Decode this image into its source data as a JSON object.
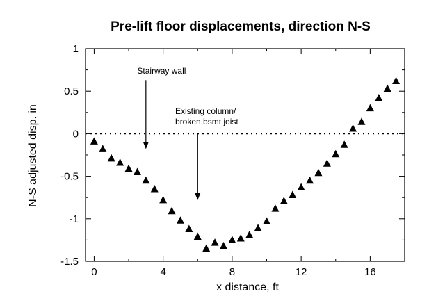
{
  "chart_data": {
    "type": "scatter",
    "title": "Pre-lift floor displacements, direction N-S",
    "xlabel": "x distance, ft",
    "ylabel": "N-S adjusted disp. in",
    "xlim": [
      -0.5,
      18
    ],
    "ylim": [
      -1.5,
      1
    ],
    "xticks": [
      0,
      4,
      8,
      12,
      16
    ],
    "xtick_labels": [
      "0",
      "4",
      "8",
      "12",
      "16"
    ],
    "yticks": [
      1,
      0.5,
      0,
      -0.5,
      -1,
      -1.5
    ],
    "ytick_labels": [
      "1",
      "0.5",
      "0",
      "-0.5",
      "-1",
      "-1.5"
    ],
    "reference_line": {
      "y": 0,
      "style": "dotted"
    },
    "marker": "filled-triangle",
    "points": [
      {
        "x": 0.0,
        "y": -0.09
      },
      {
        "x": 0.5,
        "y": -0.18
      },
      {
        "x": 1.0,
        "y": -0.29
      },
      {
        "x": 1.5,
        "y": -0.34
      },
      {
        "x": 2.0,
        "y": -0.41
      },
      {
        "x": 2.5,
        "y": -0.45
      },
      {
        "x": 3.0,
        "y": -0.55
      },
      {
        "x": 3.5,
        "y": -0.65
      },
      {
        "x": 4.0,
        "y": -0.78
      },
      {
        "x": 4.5,
        "y": -0.91
      },
      {
        "x": 5.0,
        "y": -1.02
      },
      {
        "x": 5.5,
        "y": -1.12
      },
      {
        "x": 6.0,
        "y": -1.21
      },
      {
        "x": 6.5,
        "y": -1.35
      },
      {
        "x": 7.0,
        "y": -1.28
      },
      {
        "x": 7.5,
        "y": -1.32
      },
      {
        "x": 8.0,
        "y": -1.25
      },
      {
        "x": 8.5,
        "y": -1.23
      },
      {
        "x": 9.0,
        "y": -1.19
      },
      {
        "x": 9.5,
        "y": -1.11
      },
      {
        "x": 10.0,
        "y": -1.03
      },
      {
        "x": 10.5,
        "y": -0.88
      },
      {
        "x": 11.0,
        "y": -0.79
      },
      {
        "x": 11.5,
        "y": -0.72
      },
      {
        "x": 12.0,
        "y": -0.63
      },
      {
        "x": 12.5,
        "y": -0.55
      },
      {
        "x": 13.0,
        "y": -0.46
      },
      {
        "x": 13.5,
        "y": -0.35
      },
      {
        "x": 14.0,
        "y": -0.24
      },
      {
        "x": 14.5,
        "y": -0.13
      },
      {
        "x": 15.0,
        "y": 0.06
      },
      {
        "x": 15.5,
        "y": 0.14
      },
      {
        "x": 16.0,
        "y": 0.3
      },
      {
        "x": 16.5,
        "y": 0.42
      },
      {
        "x": 17.0,
        "y": 0.53
      },
      {
        "x": 17.5,
        "y": 0.62
      }
    ],
    "annotations": [
      {
        "text_lines": [
          "Stairway wall"
        ],
        "arrow_x": 3.0,
        "arrow_from_y": 0.63,
        "arrow_to_y": -0.18
      },
      {
        "text_lines": [
          "Existing column/",
          "broken bsmt joist"
        ],
        "arrow_x": 6.0,
        "arrow_from_y": 0.0,
        "arrow_to_y": -0.78
      }
    ]
  }
}
